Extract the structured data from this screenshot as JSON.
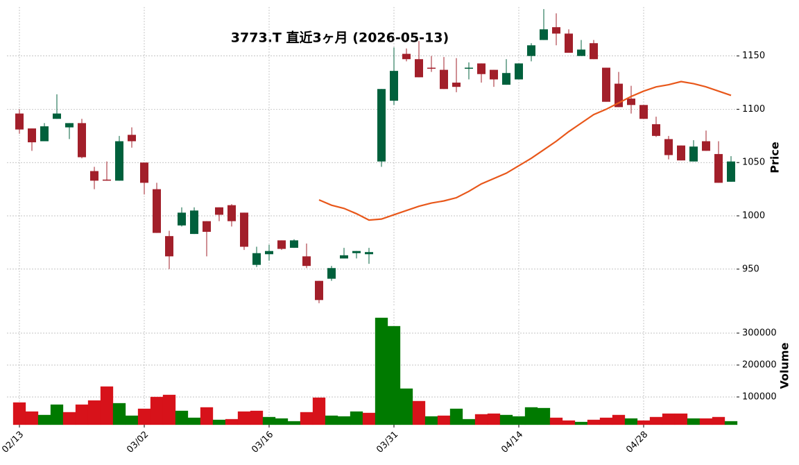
{
  "chart_data": {
    "type": "candlestick",
    "title": "3773.T  直近3ヶ月  (2026-05-13)",
    "categories": [
      "02/13",
      null,
      null,
      null,
      null,
      null,
      null,
      null,
      null,
      null,
      "03/02",
      null,
      null,
      null,
      null,
      null,
      null,
      null,
      null,
      null,
      "03/16",
      null,
      null,
      null,
      null,
      null,
      null,
      null,
      null,
      null,
      "03/31",
      null,
      null,
      null,
      null,
      null,
      null,
      null,
      null,
      null,
      "04/14",
      null,
      null,
      null,
      null,
      null,
      null,
      null,
      null,
      null,
      "04/28",
      null,
      null,
      null,
      null,
      null,
      null,
      null
    ],
    "open": [
      1096,
      1082,
      1070,
      1091,
      1083,
      1087,
      1042,
      1034,
      1033,
      1076,
      1050,
      1025,
      981,
      991,
      983,
      995,
      1008,
      1010,
      1003,
      954,
      964,
      977,
      970,
      962,
      939,
      941,
      960,
      965,
      964,
      1051,
      1108,
      1152,
      1147,
      1139,
      1137,
      1125,
      1138,
      1143,
      1137,
      1123,
      1128,
      1150,
      1165,
      1177,
      1171,
      1150,
      1162,
      1139,
      1124,
      1110,
      1104,
      1086,
      1072,
      1066,
      1051,
      1070,
      1058,
      1032
    ],
    "high": [
      1100,
      1082,
      1087,
      1114,
      1087,
      1091,
      1046,
      1051,
      1075,
      1083,
      1050,
      1031,
      986,
      1008,
      1008,
      995,
      1008,
      1011,
      1003,
      971,
      973,
      977,
      978,
      974,
      939,
      953,
      970,
      967,
      970,
      1119,
      1158,
      1157,
      1164,
      1150,
      1149,
      1148,
      1144,
      1143,
      1137,
      1147,
      1143,
      1162,
      1194,
      1190,
      1175,
      1165,
      1165,
      1139,
      1135,
      1122,
      1104,
      1093,
      1075,
      1066,
      1071,
      1080,
      1070,
      1056
    ],
    "low": [
      1077,
      1061,
      1070,
      1091,
      1072,
      1054,
      1025,
      1033,
      1033,
      1064,
      1020,
      984,
      950,
      990,
      983,
      962,
      995,
      990,
      968,
      952,
      958,
      968,
      970,
      951,
      918,
      939,
      960,
      960,
      955,
      1046,
      1104,
      1145,
      1130,
      1135,
      1119,
      1116,
      1128,
      1125,
      1121,
      1123,
      1128,
      1145,
      1165,
      1160,
      1153,
      1150,
      1147,
      1107,
      1102,
      1096,
      1091,
      1074,
      1053,
      1052,
      1051,
      1061,
      1031,
      1032
    ],
    "close": [
      1081,
      1069,
      1084,
      1096,
      1087,
      1055,
      1033,
      1033,
      1070,
      1070,
      1031,
      984,
      962,
      1003,
      1005,
      985,
      1001,
      995,
      971,
      965,
      967,
      969,
      977,
      953,
      921,
      951,
      963,
      967,
      966,
      1119,
      1136,
      1147,
      1130,
      1138,
      1119,
      1121,
      1139,
      1133,
      1128,
      1134,
      1143,
      1160,
      1175,
      1171,
      1153,
      1156,
      1147,
      1107,
      1102,
      1104,
      1091,
      1075,
      1057,
      1052,
      1065,
      1061,
      1031,
      1051
    ],
    "up_color": "#00603c",
    "down_color": "#a21f2a",
    "ma": {
      "color": "#e8571a",
      "values": [
        null,
        null,
        null,
        null,
        null,
        null,
        null,
        null,
        null,
        null,
        null,
        null,
        null,
        null,
        null,
        null,
        null,
        null,
        null,
        null,
        null,
        null,
        null,
        null,
        1015,
        1010,
        1007,
        1002,
        996,
        997,
        1001,
        1005,
        1009,
        1012,
        1014,
        1017,
        1023,
        1030,
        1035,
        1040,
        1047,
        1054,
        1062,
        1070,
        1079,
        1087,
        1095,
        1100,
        1106,
        1112,
        1117,
        1121,
        1123,
        1126,
        1124,
        1121,
        1117,
        1113
      ]
    },
    "ylabel": "Price",
    "ylim": [
      916,
      1196
    ],
    "yticks": [
      950,
      1000,
      1050,
      1100,
      1150
    ],
    "grid": true,
    "volume": {
      "ylabel": "Volume",
      "ylim": [
        13000,
        376000
      ],
      "yticks": [
        100000,
        200000,
        300000
      ],
      "values": [
        82600,
        54300,
        43500,
        76000,
        52200,
        76000,
        89000,
        132600,
        80400,
        41300,
        63000,
        100000,
        106500,
        56500,
        34800,
        67400,
        28300,
        30400,
        54300,
        56500,
        37000,
        32600,
        23900,
        52200,
        97800,
        41300,
        39100,
        54300,
        50000,
        347800,
        321700,
        126100,
        87000,
        39100,
        41300,
        63000,
        30400,
        45700,
        47800,
        43500,
        39100,
        67400,
        65200,
        34800,
        26100,
        21700,
        28300,
        34800,
        43500,
        32600,
        26100,
        37000,
        47800,
        47800,
        32600,
        32600,
        37000,
        23900
      ],
      "colors": [
        "#d7121a",
        "#d7121a",
        "#007a00",
        "#007a00",
        "#d7121a",
        "#d7121a",
        "#d7121a",
        "#d7121a",
        "#007a00",
        "#007a00",
        "#d7121a",
        "#d7121a",
        "#d7121a",
        "#007a00",
        "#007a00",
        "#d7121a",
        "#007a00",
        "#d7121a",
        "#d7121a",
        "#d7121a",
        "#007a00",
        "#007a00",
        "#007a00",
        "#d7121a",
        "#d7121a",
        "#007a00",
        "#007a00",
        "#007a00",
        "#d7121a",
        "#007a00",
        "#007a00",
        "#007a00",
        "#d7121a",
        "#007a00",
        "#d7121a",
        "#007a00",
        "#007a00",
        "#d7121a",
        "#d7121a",
        "#007a00",
        "#007a00",
        "#007a00",
        "#007a00",
        "#d7121a",
        "#d7121a",
        "#007a00",
        "#d7121a",
        "#d7121a",
        "#d7121a",
        "#007a00",
        "#d7121a",
        "#d7121a",
        "#d7121a",
        "#d7121a",
        "#007a00",
        "#d7121a",
        "#d7121a",
        "#007a00"
      ]
    }
  }
}
